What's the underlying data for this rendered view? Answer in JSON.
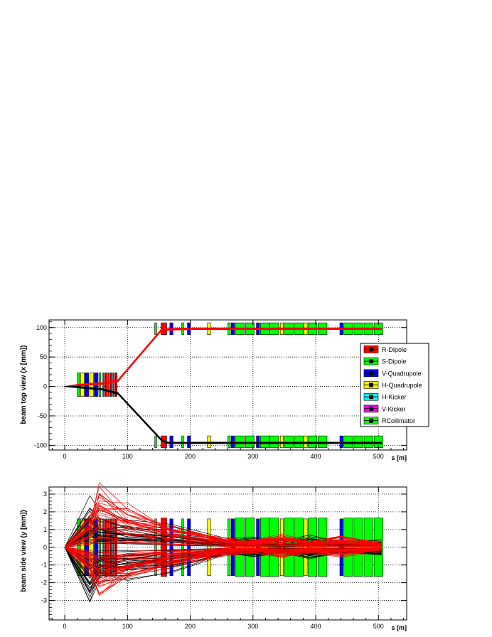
{
  "colors": {
    "r_dipole": "#ff0000",
    "s_dipole": "#00ff00",
    "v_quad": "#0000ff",
    "h_quad": "#ffff00",
    "h_kicker": "#00ffff",
    "v_kicker": "#ff00ff",
    "rcollimator": "#00ff00",
    "beam_a": "#000000",
    "beam_b": "#ff0000"
  },
  "chart_data": [
    {
      "type": "line",
      "id": "top",
      "ylabel": "beam top view (x [mm])",
      "xlabel": "s [m]",
      "xlim": [
        -25,
        545
      ],
      "ylim": [
        -108,
        113
      ],
      "xticks": [
        0,
        100,
        200,
        300,
        400,
        500
      ],
      "yticks": [
        -100,
        -50,
        0,
        50,
        100
      ],
      "grid": true,
      "legend": {
        "placement": "right",
        "entries": [
          {
            "label": "R-Dipole",
            "color": "#ff0000"
          },
          {
            "label": "S-Dipole",
            "color": "#00ff00"
          },
          {
            "label": "V-Quadrupole",
            "color": "#0000ff"
          },
          {
            "label": "H-Quadrupole",
            "color": "#ffff00"
          },
          {
            "label": "H-Kicker",
            "color": "#00ffff"
          },
          {
            "label": "V-Kicker",
            "color": "#ff00ff"
          },
          {
            "label": "RCollimator",
            "color": "#00ff00"
          }
        ]
      },
      "beams": [
        {
          "color": "#ff0000",
          "x": [
            0,
            20,
            40,
            60,
            85,
            155,
            165,
            200,
            250,
            300,
            350,
            400,
            450,
            505
          ],
          "y": [
            0,
            2,
            4,
            5,
            10,
            97,
            97,
            98,
            98,
            98,
            98,
            98,
            98,
            98
          ],
          "spread": 3
        },
        {
          "color": "#000000",
          "x": [
            0,
            20,
            40,
            60,
            85,
            155,
            165,
            200,
            250,
            300,
            350,
            400,
            450,
            505
          ],
          "y": [
            0,
            -1,
            -3,
            -5,
            -12,
            -92,
            -96,
            -96,
            -96,
            -96,
            -96,
            -96,
            -96,
            -96
          ],
          "spread": 3
        }
      ]
    },
    {
      "type": "line",
      "id": "side",
      "ylabel": "beam side view (y [mm])",
      "xlabel": "s [m]",
      "xlim": [
        -25,
        545
      ],
      "ylim": [
        -4.1,
        3.4
      ],
      "xticks": [
        0,
        100,
        200,
        300,
        400,
        500
      ],
      "yticks": [
        -3,
        -2,
        -1,
        0,
        1,
        2,
        3
      ],
      "grid": true,
      "beams": [
        {
          "color": "#000000",
          "x": [
            0,
            40,
            55,
            100,
            170,
            260,
            300,
            345,
            390,
            440,
            505
          ],
          "y": [
            0,
            2.8,
            1.9,
            1.6,
            1.2,
            0.4,
            0.5,
            0.3,
            0.6,
            0.3,
            0.4
          ],
          "spread": 1
        },
        {
          "color": "#ff0000",
          "x": [
            0,
            40,
            55,
            100,
            170,
            260,
            300,
            345,
            390,
            440,
            505
          ],
          "y": [
            0,
            1.5,
            3.0,
            2.0,
            1.1,
            0.4,
            0.3,
            0.6,
            0.3,
            0.5,
            0.2
          ],
          "spread": 1
        }
      ]
    }
  ]
}
